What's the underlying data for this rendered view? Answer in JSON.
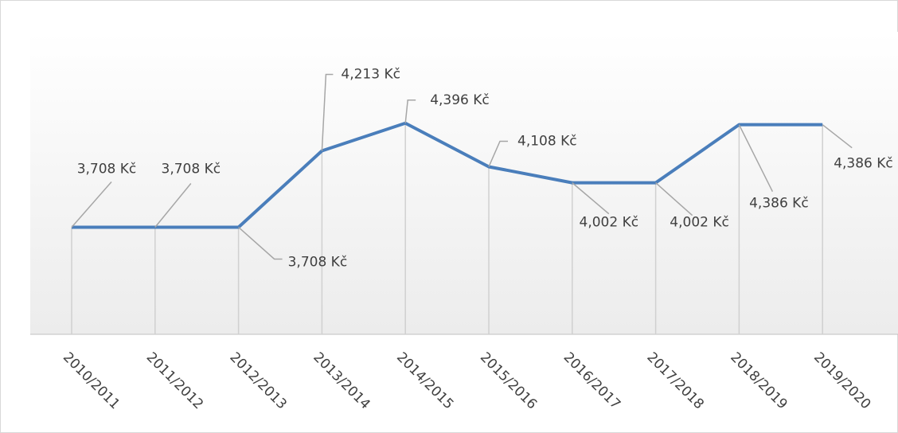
{
  "chart_data": {
    "type": "line",
    "categories": [
      "2010/2011",
      "2011/2012",
      "2012/2013",
      "2013/2014",
      "2014/2015",
      "2015/2016",
      "2016/2017",
      "2017/2018",
      "2018/2019",
      "2019/2020"
    ],
    "series": [
      {
        "name": "",
        "color": "#4a7ebb",
        "values": [
          3708,
          3708,
          3708,
          4213,
          4396,
          4108,
          4002,
          4002,
          4386,
          4386
        ],
        "value_labels": [
          "3,708 Kč",
          "3,708 Kč",
          "3,708 Kč",
          "4,213 Kč",
          "4,396 Kč",
          "4,108 Kč",
          "4,002 Kč",
          "4,002 Kč",
          "4,386 Kč",
          "4,386 Kč"
        ]
      }
    ],
    "ylim": [
      3000,
      5000
    ]
  }
}
